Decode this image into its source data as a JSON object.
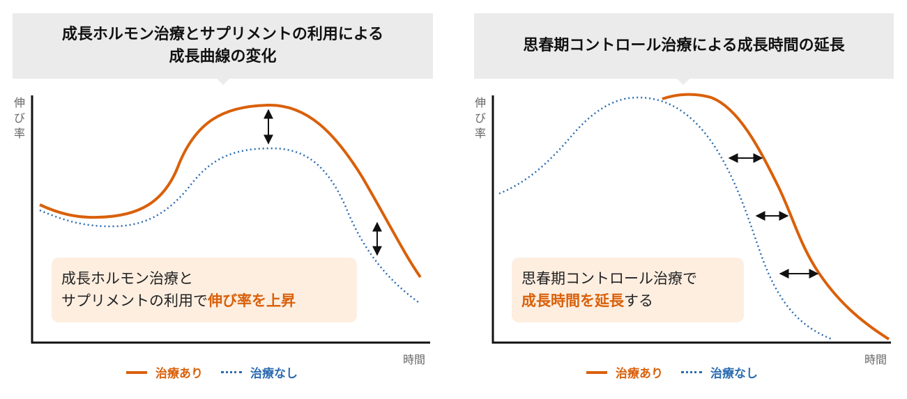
{
  "left_panel": {
    "title_line1": "成長ホルモン治療とサプリメントの利用による",
    "title_line2": "成長曲線の変化",
    "y_axis_label": "伸び率",
    "x_axis_label": "時間",
    "callout_line1": "成長ホルモン治療と",
    "callout_line2_plain": "サプリメントの利用で",
    "callout_line2_highlight": "伸び率を上昇",
    "legend": {
      "with_treatment": "治療あり",
      "without_treatment": "治療なし"
    }
  },
  "right_panel": {
    "title": "思春期コントロール治療による成長時間の延長",
    "y_axis_label": "伸び率",
    "x_axis_label": "時間",
    "callout_line1": "思春期コントロール治療で",
    "callout_line2_highlight": "成長時間を延長",
    "callout_line2_plain": "する",
    "legend": {
      "with_treatment": "治療あり",
      "without_treatment": "治療なし"
    }
  },
  "colors": {
    "treated": "#d9600a",
    "untreated": "#2a6bb0",
    "callout_bg": "#fdeee0",
    "header_bg": "#ebebeb"
  }
}
